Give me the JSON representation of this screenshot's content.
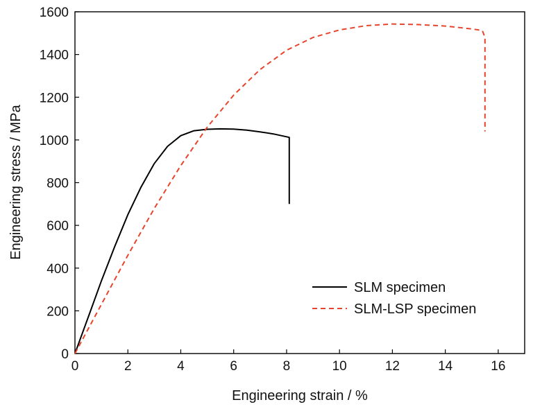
{
  "chart_data": {
    "type": "line",
    "xlabel": "Engineering strain / %",
    "ylabel": "Engineering stress / MPa",
    "xlim": [
      0,
      17
    ],
    "ylim": [
      0,
      1600
    ],
    "xticks": [
      0,
      2,
      4,
      6,
      8,
      10,
      12,
      14,
      16
    ],
    "yticks": [
      0,
      200,
      400,
      600,
      800,
      1000,
      1200,
      1400,
      1600
    ],
    "grid": false,
    "legend_position": "lower-right",
    "series": [
      {
        "name": "SLM specimen",
        "color": "#000000",
        "dash": "solid",
        "x": [
          0,
          0.5,
          1.0,
          1.5,
          2.0,
          2.5,
          3.0,
          3.5,
          4.0,
          4.5,
          5.0,
          5.5,
          6.0,
          6.5,
          7.0,
          7.5,
          8.0,
          8.1,
          8.1
        ],
        "y": [
          0,
          170,
          340,
          500,
          650,
          780,
          890,
          970,
          1020,
          1043,
          1050,
          1052,
          1051,
          1046,
          1038,
          1028,
          1015,
          1012,
          700
        ]
      },
      {
        "name": "SLM-LSP specimen",
        "color": "#e8432c",
        "dash": "dashed",
        "x": [
          0,
          1,
          2,
          3,
          4,
          5,
          6,
          7,
          8,
          9,
          10,
          11,
          12,
          13,
          14,
          15,
          15.4,
          15.5,
          15.5
        ],
        "y": [
          0,
          230,
          460,
          680,
          880,
          1060,
          1210,
          1330,
          1420,
          1480,
          1515,
          1535,
          1543,
          1540,
          1533,
          1520,
          1512,
          1480,
          1040
        ]
      }
    ]
  }
}
